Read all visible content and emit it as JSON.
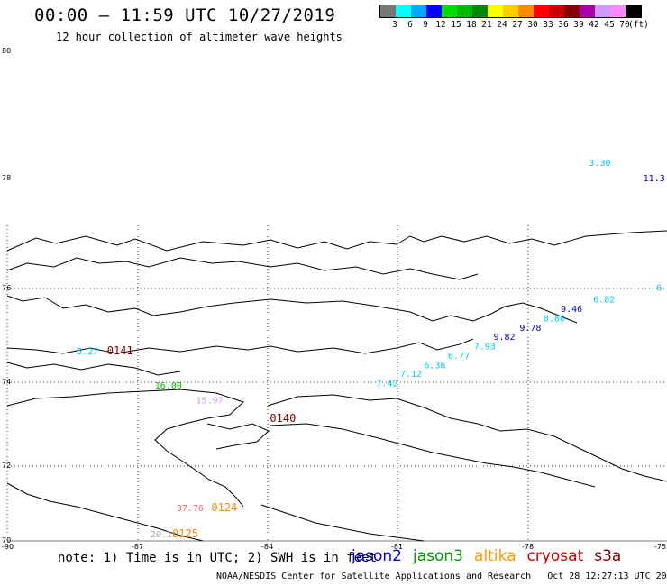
{
  "header": {
    "title": "00:00 – 11:59 UTC 10/27/2019",
    "subtitle": "12 hour collection of altimeter wave heights"
  },
  "legend": {
    "unit": "(ft)",
    "bins": [
      {
        "label": "3",
        "color": "#777777"
      },
      {
        "label": "6",
        "color": "#00ffff"
      },
      {
        "label": "9",
        "color": "#00aaff"
      },
      {
        "label": "12",
        "color": "#0000ff"
      },
      {
        "label": "15",
        "color": "#00dd00"
      },
      {
        "label": "18",
        "color": "#00bb00"
      },
      {
        "label": "21",
        "color": "#008800"
      },
      {
        "label": "24",
        "color": "#ffff00"
      },
      {
        "label": "27",
        "color": "#ffcc00"
      },
      {
        "label": "30",
        "color": "#ff8800"
      },
      {
        "label": "33",
        "color": "#ff0000"
      },
      {
        "label": "36",
        "color": "#cc0000"
      },
      {
        "label": "39",
        "color": "#880000"
      },
      {
        "label": "42",
        "color": "#aa00aa"
      },
      {
        "label": "45",
        "color": "#cc99ff"
      },
      {
        "label": "70",
        "color": "#ff88ff"
      },
      {
        "label": "",
        "color": "#000000"
      }
    ]
  },
  "map": {
    "lat_labels": [
      "80",
      "78",
      "76",
      "74",
      "72",
      "70"
    ],
    "lon_labels": [
      "-90",
      "-87",
      "-84",
      "-81",
      "-78",
      "-75"
    ],
    "wave_labels": [
      {
        "text": "3.30",
        "lon": -76.6,
        "lat": 78.2,
        "color": "#00c8ff"
      },
      {
        "text": "11.3",
        "lon": -75.35,
        "lat": 77.95,
        "color": "#0000cc"
      },
      {
        "text": "6.82",
        "lon": -76.5,
        "lat": 75.7,
        "color": "#00c8ff"
      },
      {
        "text": "6",
        "lon": -75.05,
        "lat": 75.95,
        "color": "#00c8ff"
      },
      {
        "text": "9.46",
        "lon": -77.25,
        "lat": 75.5,
        "color": "#0000cc"
      },
      {
        "text": "8.80",
        "lon": -77.65,
        "lat": 75.3,
        "color": "#00c8ff"
      },
      {
        "text": "9.78",
        "lon": -78.2,
        "lat": 75.1,
        "color": "#0000cc"
      },
      {
        "text": "9.82",
        "lon": -78.8,
        "lat": 74.9,
        "color": "#0000cc"
      },
      {
        "text": "7.93",
        "lon": -79.25,
        "lat": 74.7,
        "color": "#00c8ff"
      },
      {
        "text": "6.77",
        "lon": -79.85,
        "lat": 74.5,
        "color": "#00c8ff"
      },
      {
        "text": "6.36",
        "lon": -80.4,
        "lat": 74.3,
        "color": "#00c8ff"
      },
      {
        "text": "7.12",
        "lon": -80.95,
        "lat": 74.12,
        "color": "#00c8ff"
      },
      {
        "text": "7.42",
        "lon": -81.5,
        "lat": 73.9,
        "color": "#00c8ff"
      },
      {
        "text": "5.27",
        "lon": -88.4,
        "lat": 74.6,
        "color": "#00c8ff"
      },
      {
        "text": "16.00",
        "lon": -86.6,
        "lat": 73.85,
        "color": "#00bb00"
      },
      {
        "text": "15.97",
        "lon": -85.65,
        "lat": 73.5,
        "color": "#cc99ff"
      },
      {
        "text": "37.76",
        "lon": -86.1,
        "lat": 70.8,
        "color": "#ff6666"
      },
      {
        "text": "20.1",
        "lon": -86.7,
        "lat": 70.1,
        "color": "#aaaaaa"
      }
    ],
    "pass_labels": [
      {
        "text": "0141",
        "lon": -87.7,
        "lat": 74.6,
        "color": "#880000"
      },
      {
        "text": "0140",
        "lon": -83.95,
        "lat": 73.05,
        "color": "#880000"
      },
      {
        "text": "0124",
        "lon": -85.3,
        "lat": 70.8,
        "color": "#ff8800"
      },
      {
        "text": "0125",
        "lon": -86.2,
        "lat": 70.1,
        "color": "#ff8800"
      }
    ]
  },
  "footer": {
    "note": "note: 1) Time is in UTC; 2) SWH is in feet",
    "satellites": [
      {
        "name": "jason2",
        "color": "#0000dd"
      },
      {
        "name": "jason3",
        "color": "#009900"
      },
      {
        "name": "altika",
        "color": "#ff9900"
      },
      {
        "name": "cryosat",
        "color": "#cc0000"
      },
      {
        "name": "s3a",
        "color": "#880000"
      }
    ],
    "credit": "NOAA/NESDIS Center for Satellite Applications and Research",
    "timestamp": "Oct 28 12:27:13 UTC 2019"
  }
}
